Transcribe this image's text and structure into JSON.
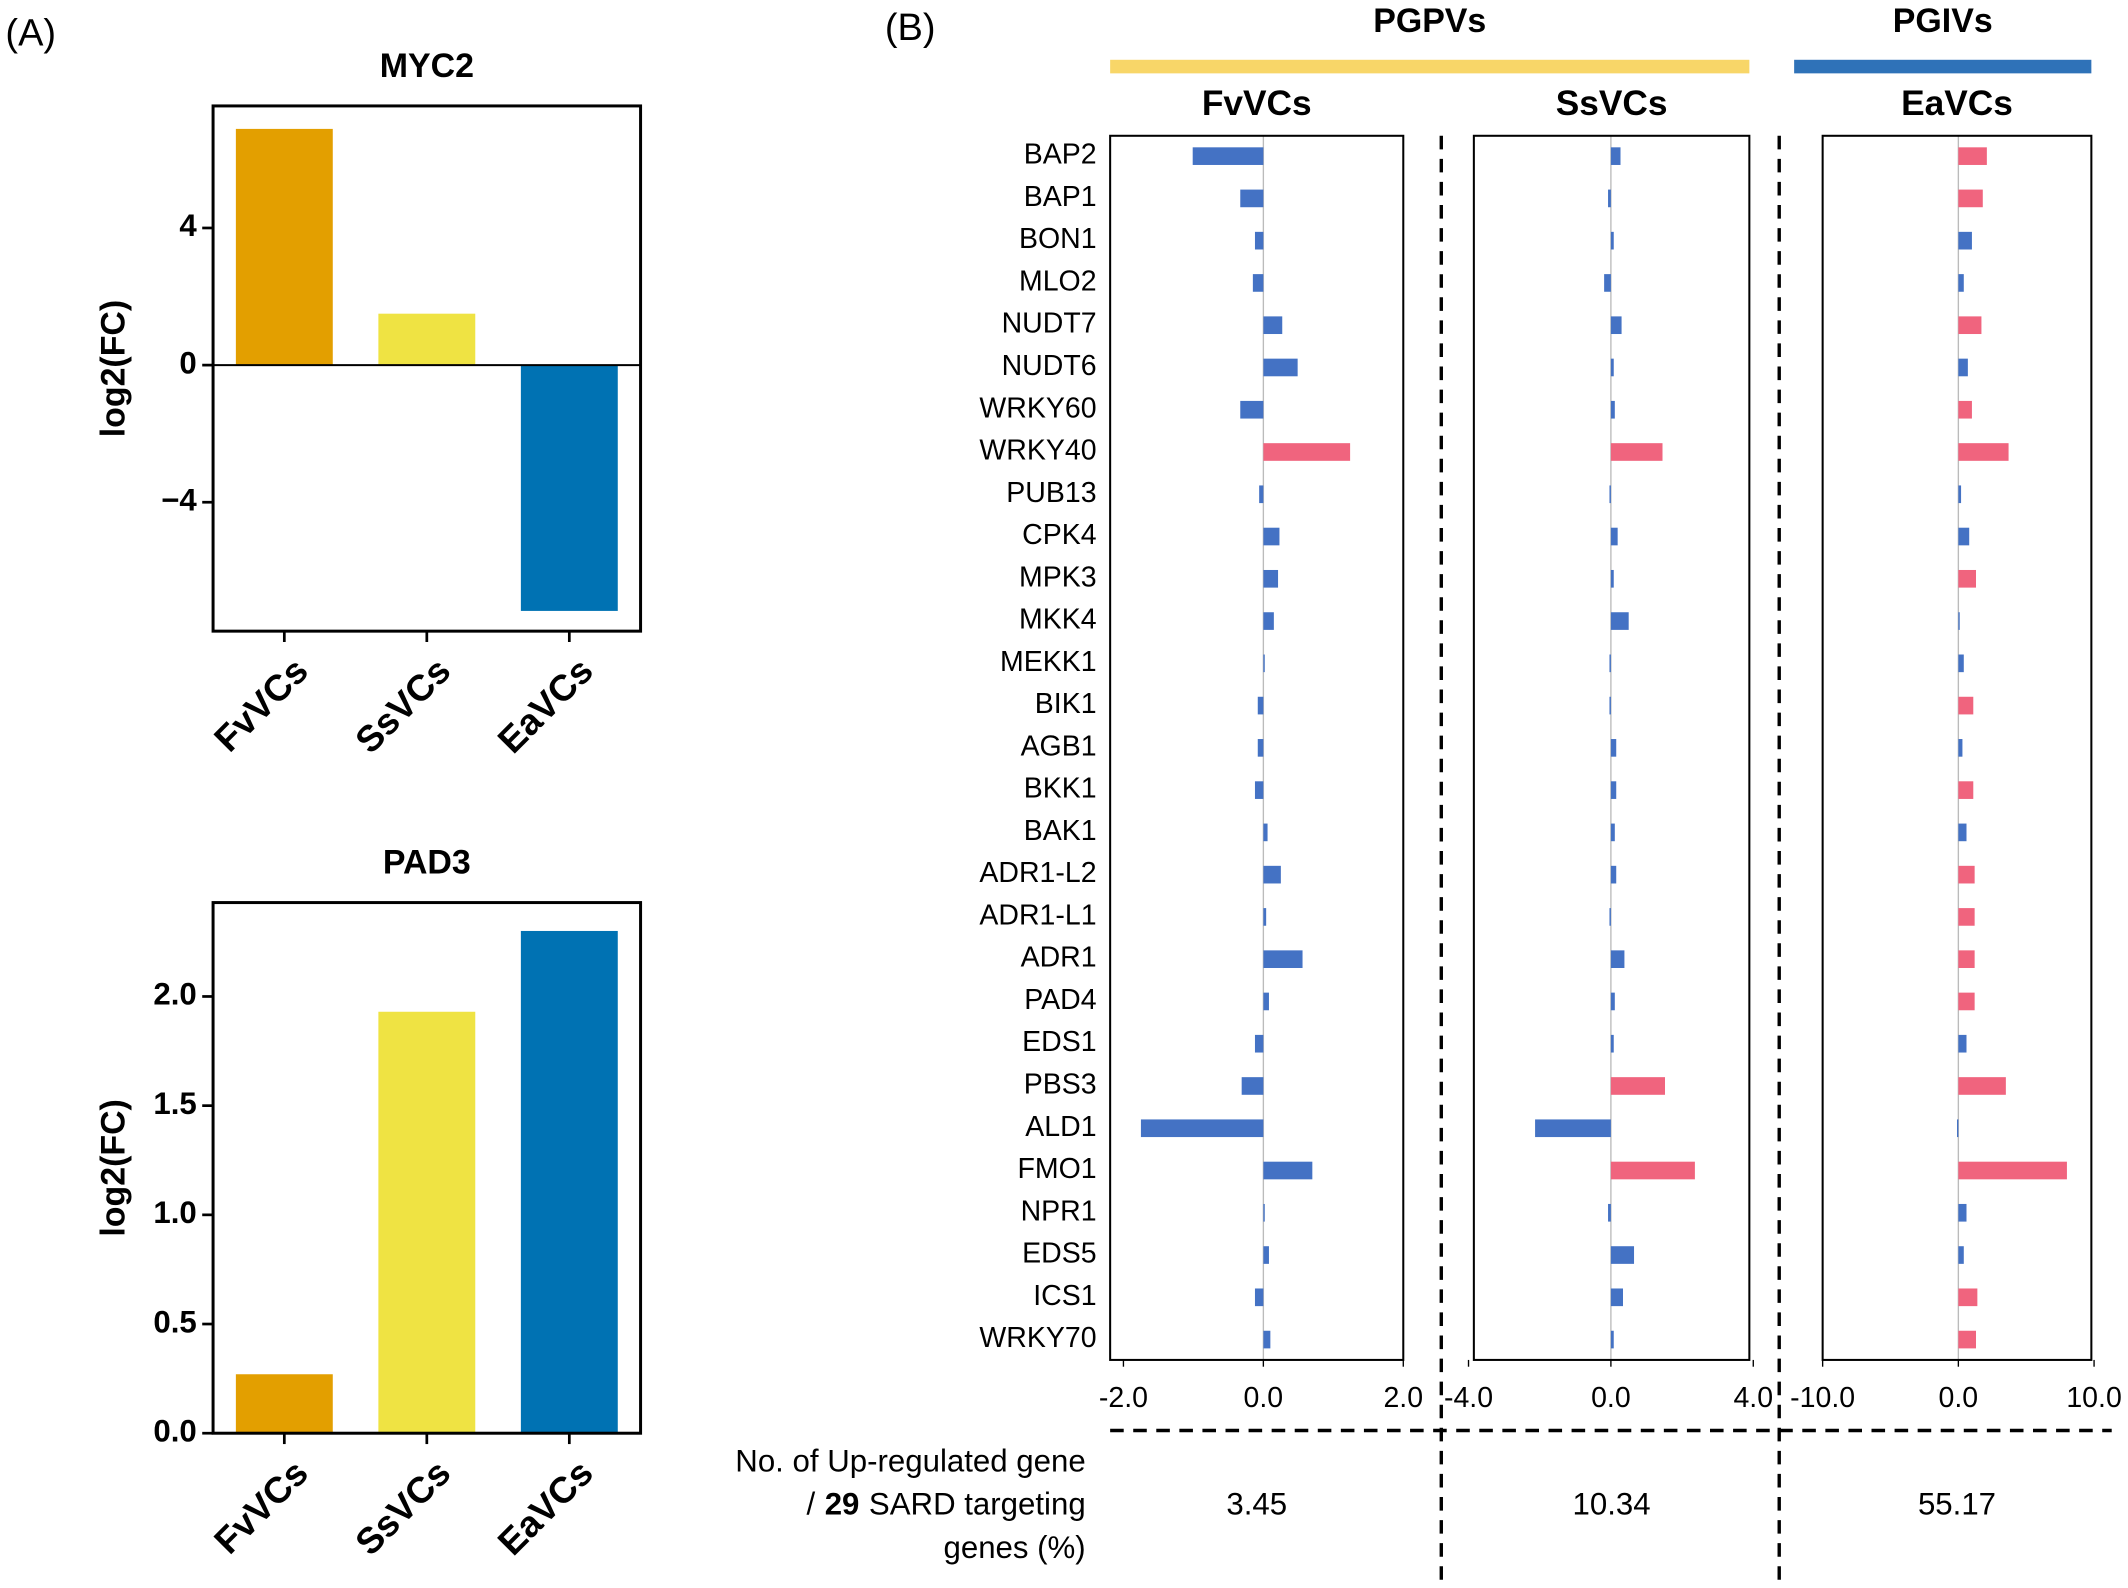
{
  "panel_labels": [
    "(A)",
    "(B)"
  ],
  "chart_data": [
    {
      "type": "bar",
      "title": "MYC2",
      "ylabel": "log2(FC)",
      "categories": [
        "FvVCs",
        "SsVCs",
        "EaVCs"
      ],
      "values": [
        6.89,
        1.5,
        -7.17
      ],
      "colors": [
        "#e39f00",
        "#efe343",
        "#0072b3"
      ],
      "ylim": [
        -7.76,
        7.56
      ],
      "yticks": [
        {
          "value": -4,
          "label": "−4"
        },
        0,
        4
      ]
    },
    {
      "type": "bar",
      "title": "PAD3",
      "ylabel": "log2(FC)",
      "categories": [
        "FvVCs",
        "SsVCs",
        "EaVCs"
      ],
      "values": [
        0.27,
        1.93,
        2.3
      ],
      "colors": [
        "#e39f00",
        "#efe343",
        "#0072b3"
      ],
      "ylim": [
        0,
        2.43
      ],
      "yticks": [
        {
          "value": 0,
          "label": "0.0"
        },
        {
          "value": 0.5,
          "label": "0.5"
        },
        {
          "value": 1,
          "label": "1.0"
        },
        {
          "value": 1.5,
          "label": "1.5"
        },
        {
          "value": 2,
          "label": "2.0"
        }
      ]
    },
    {
      "type": "hbar_panels",
      "categories": [
        "BAP2",
        "BAP1",
        "BON1",
        "MLO2",
        "NUDT7",
        "NUDT6",
        "WRKY60",
        "WRKY40",
        "PUB13",
        "CPK4",
        "MPK3",
        "MKK4",
        "MEKK1",
        "BIK1",
        "AGB1",
        "BKK1",
        "BAK1",
        "ADR1-L2",
        "ADR1-L1",
        "ADR1",
        "PAD4",
        "EDS1",
        "PBS3",
        "ALD1",
        "FMO1",
        "NPR1",
        "EDS5",
        "ICS1",
        "WRKY70"
      ],
      "footnote": {
        "line1": "No. of Up-regulated gene",
        "slash": "/",
        "count": "29",
        "rest": "SARD targeting",
        "line3": "genes (%)"
      },
      "groups": [
        {
          "name": "PGPVs",
          "color": "#f8d668",
          "series": [
            {
              "name": "FvVCs",
              "xlim": [
                -2.19,
                2.0
              ],
              "xticks": [
                {
                  "value": -2,
                  "label": "-2.0"
                },
                {
                  "value": 0,
                  "label": "0.0"
                },
                {
                  "value": 2,
                  "label": "2.0"
                }
              ],
              "values": [
                -1.01,
                -0.33,
                -0.12,
                -0.15,
                0.27,
                0.49,
                -0.33,
                1.24,
                -0.06,
                0.23,
                0.21,
                0.15,
                0.02,
                -0.08,
                -0.08,
                -0.12,
                0.06,
                0.25,
                0.04,
                0.56,
                0.08,
                -0.12,
                -0.31,
                -1.75,
                0.7,
                0.02,
                0.08,
                -0.12,
                0.1
              ],
              "colors": [
                "#4472c4",
                "#4472c4",
                "#4472c4",
                "#4472c4",
                "#4472c4",
                "#4472c4",
                "#4472c4",
                "#f0647e",
                "#4472c4",
                "#4472c4",
                "#4472c4",
                "#4472c4",
                "#4472c4",
                "#4472c4",
                "#4472c4",
                "#4472c4",
                "#4472c4",
                "#4472c4",
                "#4472c4",
                "#4472c4",
                "#4472c4",
                "#4472c4",
                "#4472c4",
                "#4472c4",
                "#4472c4",
                "#4472c4",
                "#4472c4",
                "#4472c4",
                "#4472c4"
              ],
              "up_pct": 3.45
            },
            {
              "name": "SsVCs",
              "xlim": [
                -3.85,
                3.89
              ],
              "xticks": [
                {
                  "value": -4,
                  "label": "-4.0"
                },
                {
                  "value": 0,
                  "label": "0.0"
                },
                {
                  "value": 4,
                  "label": "4.0"
                }
              ],
              "values": [
                0.27,
                -0.08,
                0.08,
                -0.19,
                0.3,
                0.08,
                0.11,
                1.45,
                -0.04,
                0.19,
                0.08,
                0.5,
                -0.04,
                -0.04,
                0.15,
                0.15,
                0.11,
                0.15,
                -0.04,
                0.38,
                0.11,
                0.08,
                1.52,
                -2.13,
                2.36,
                -0.08,
                0.65,
                0.34,
                0.08
              ],
              "colors": [
                "#4472c4",
                "#4472c4",
                "#4472c4",
                "#4472c4",
                "#4472c4",
                "#4472c4",
                "#4472c4",
                "#f0647e",
                "#4472c4",
                "#4472c4",
                "#4472c4",
                "#4472c4",
                "#4472c4",
                "#4472c4",
                "#4472c4",
                "#4472c4",
                "#4472c4",
                "#4472c4",
                "#4472c4",
                "#4472c4",
                "#4472c4",
                "#4472c4",
                "#f0647e",
                "#4472c4",
                "#f0647e",
                "#4472c4",
                "#4472c4",
                "#4472c4",
                "#4472c4"
              ],
              "up_pct": 10.34
            }
          ]
        },
        {
          "name": "PGIVs",
          "color": "#2f72b8",
          "series": [
            {
              "name": "EaVCs",
              "xlim": [
                -10,
                9.8
              ],
              "xticks": [
                {
                  "value": -10,
                  "label": "-10.0"
                },
                {
                  "value": 0,
                  "label": "0.0"
                },
                {
                  "value": 10,
                  "label": "10.0"
                }
              ],
              "values": [
                2.1,
                1.8,
                1.0,
                0.4,
                1.7,
                0.7,
                1.0,
                3.7,
                0.2,
                0.8,
                1.3,
                0.1,
                0.4,
                1.1,
                0.3,
                1.1,
                0.6,
                1.2,
                1.2,
                1.2,
                1.2,
                0.6,
                3.5,
                -0.1,
                8.0,
                0.6,
                0.4,
                1.4,
                1.3
              ],
              "colors": [
                "#f0647e",
                "#f0647e",
                "#4472c4",
                "#4472c4",
                "#f0647e",
                "#4472c4",
                "#f0647e",
                "#f0647e",
                "#4472c4",
                "#4472c4",
                "#f0647e",
                "#4472c4",
                "#4472c4",
                "#f0647e",
                "#4472c4",
                "#f0647e",
                "#4472c4",
                "#f0647e",
                "#f0647e",
                "#f0647e",
                "#f0647e",
                "#4472c4",
                "#f0647e",
                "#4472c4",
                "#f0647e",
                "#4472c4",
                "#4472c4",
                "#f0647e",
                "#f0647e"
              ],
              "up_pct": 55.17
            }
          ]
        }
      ]
    }
  ]
}
